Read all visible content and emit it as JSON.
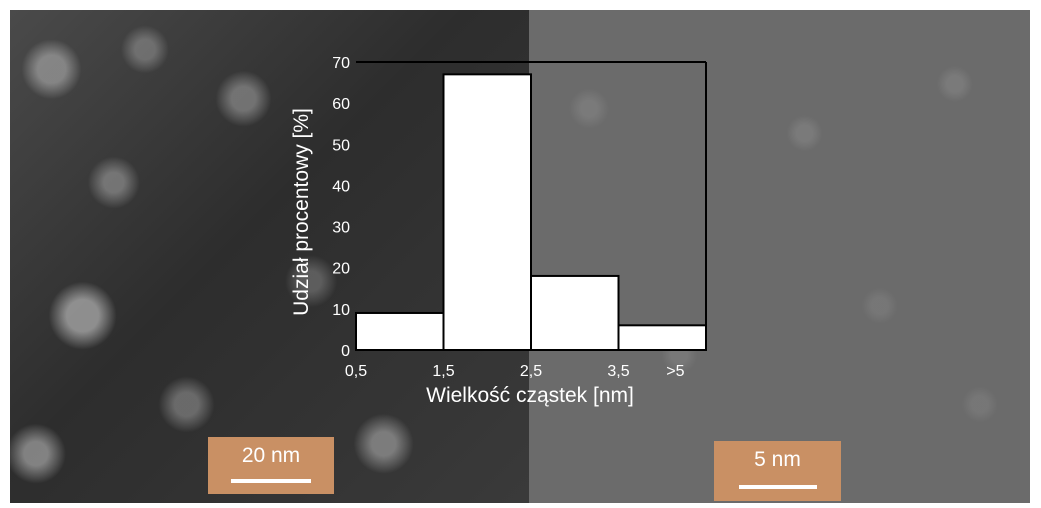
{
  "chart_data": {
    "type": "bar",
    "categories": [
      "1",
      "2",
      "3",
      "4"
    ],
    "values": [
      9,
      67,
      18,
      6
    ],
    "x_tick_labels": [
      "0,5",
      "1,5",
      "2,5",
      "3,5",
      ">5"
    ],
    "y_ticks": [
      "0",
      "10",
      "20",
      "30",
      "40",
      "50",
      "60",
      "70"
    ],
    "ylim": [
      0,
      70
    ],
    "xlabel": "Wielkość cząstek [nm]",
    "ylabel": "Udział procentowy [%]",
    "title": "",
    "grid": false,
    "legend": "none",
    "colors": {
      "bar_fill": "#ffffff",
      "bar_stroke": "#000000",
      "axis": "#000000",
      "text": "#ffffff"
    }
  },
  "scale_bars": {
    "left_label": "20 nm",
    "right_label": "5 nm",
    "color": "#c99064"
  }
}
